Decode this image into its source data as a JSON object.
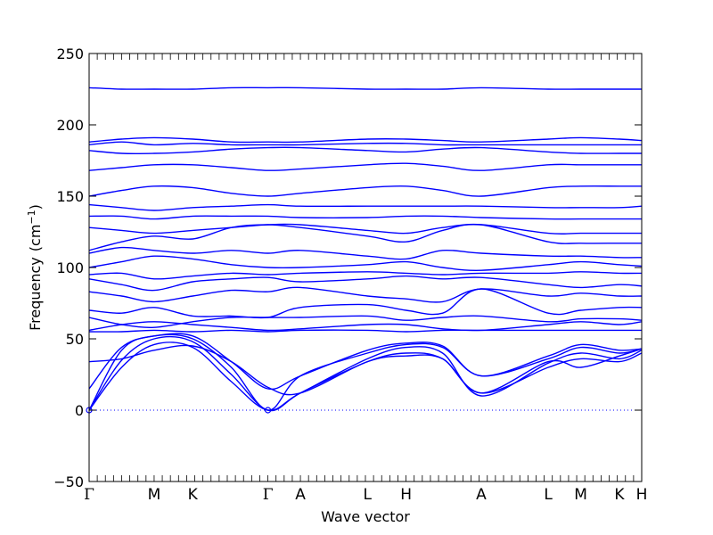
{
  "chart_data": {
    "type": "line",
    "title": "",
    "xlabel": "Wave vector",
    "ylabel_main": "Frequency",
    "ylabel_unit": "(cm",
    "ylabel_unit_sup": "−1",
    "ylabel_unit_close": ")",
    "ylim": [
      -50,
      250
    ],
    "yticks": [
      -50,
      0,
      50,
      100,
      150,
      200,
      250
    ],
    "grid": false,
    "legend": "none",
    "zero_line": true,
    "line_color": "#0000ff",
    "x_path_range": [
      0,
      13.6
    ],
    "kpoints": [
      {
        "label": "Γ",
        "x": 0
      },
      {
        "label": "M",
        "x": 1.6
      },
      {
        "label": "K",
        "x": 2.55
      },
      {
        "label": "Γ",
        "x": 4.4
      },
      {
        "label": "A",
        "x": 5.2
      },
      {
        "label": "L",
        "x": 6.85
      },
      {
        "label": "H",
        "x": 7.8
      },
      {
        "label": "A",
        "x": 9.65
      },
      {
        "label": "L",
        "x": 11.3
      },
      {
        "label": "M",
        "x": 12.1
      },
      {
        "label": "K",
        "x": 13.05
      },
      {
        "label": "H",
        "x": 13.6
      }
    ],
    "bands": [
      {
        "name": "",
        "values": [
          0,
          35,
          50,
          48,
          25,
          0,
          12,
          36,
          44,
          40,
          10,
          33,
          40,
          36,
          42
        ]
      },
      {
        "name": "",
        "values": [
          0,
          30,
          46,
          44,
          20,
          0,
          12,
          34,
          40,
          36,
          12,
          30,
          36,
          34,
          40
        ]
      },
      {
        "name": "",
        "values": [
          0,
          42,
          52,
          50,
          30,
          0,
          24,
          40,
          46,
          44,
          24,
          36,
          44,
          40,
          43
        ]
      },
      {
        "name": "",
        "values": [
          15,
          44,
          52,
          52,
          34,
          15,
          24,
          42,
          47,
          45,
          24,
          38,
          46,
          42,
          43
        ]
      },
      {
        "name": "",
        "values": [
          34,
          36,
          42,
          45,
          34,
          16,
          12,
          34,
          38,
          36,
          12,
          34,
          30,
          38,
          43
        ]
      },
      {
        "name": "",
        "values": [
          55,
          55,
          56,
          55,
          56,
          55,
          56,
          56,
          55,
          56,
          56,
          56,
          56,
          56,
          56
        ]
      },
      {
        "name": "",
        "values": [
          56,
          60,
          62,
          60,
          58,
          56,
          57,
          60,
          60,
          57,
          56,
          60,
          62,
          60,
          62
        ]
      },
      {
        "name": "",
        "values": [
          65,
          60,
          58,
          62,
          65,
          65,
          65,
          66,
          63,
          65,
          66,
          62,
          64,
          64,
          63
        ]
      },
      {
        "name": "",
        "values": [
          70,
          68,
          72,
          66,
          66,
          65,
          72,
          74,
          70,
          68,
          85,
          68,
          70,
          72,
          72
        ]
      },
      {
        "name": "",
        "values": [
          83,
          80,
          76,
          80,
          84,
          83,
          86,
          80,
          78,
          76,
          85,
          80,
          82,
          80,
          80
        ]
      },
      {
        "name": "",
        "values": [
          92,
          88,
          84,
          90,
          92,
          93,
          90,
          92,
          94,
          92,
          93,
          88,
          86,
          88,
          87
        ]
      },
      {
        "name": "",
        "values": [
          95,
          96,
          92,
          94,
          96,
          95,
          96,
          97,
          96,
          95,
          96,
          96,
          97,
          96,
          96
        ]
      },
      {
        "name": "",
        "values": [
          100,
          104,
          108,
          106,
          102,
          100,
          100,
          102,
          104,
          100,
          98,
          102,
          104,
          102,
          101
        ]
      },
      {
        "name": "",
        "values": [
          110,
          114,
          112,
          110,
          112,
          110,
          112,
          108,
          106,
          112,
          110,
          108,
          108,
          107,
          107
        ]
      },
      {
        "name": "",
        "values": [
          112,
          118,
          122,
          120,
          128,
          130,
          128,
          122,
          118,
          126,
          130,
          118,
          117,
          117,
          117
        ]
      },
      {
        "name": "",
        "values": [
          128,
          126,
          124,
          126,
          128,
          130,
          130,
          126,
          124,
          128,
          130,
          124,
          124,
          124,
          124
        ]
      },
      {
        "name": "",
        "values": [
          136,
          136,
          134,
          136,
          136,
          136,
          135,
          135,
          136,
          136,
          135,
          134,
          134,
          134,
          134
        ]
      },
      {
        "name": "",
        "values": [
          144,
          142,
          140,
          142,
          143,
          144,
          143,
          143,
          143,
          143,
          143,
          142,
          142,
          142,
          143
        ]
      },
      {
        "name": "",
        "values": [
          150,
          154,
          157,
          156,
          152,
          150,
          152,
          156,
          157,
          154,
          150,
          156,
          157,
          157,
          157
        ]
      },
      {
        "name": "",
        "values": [
          168,
          170,
          172,
          172,
          170,
          168,
          169,
          172,
          173,
          171,
          168,
          172,
          172,
          172,
          172
        ]
      },
      {
        "name": "",
        "values": [
          182,
          180,
          180,
          181,
          183,
          184,
          184,
          182,
          181,
          183,
          184,
          181,
          180,
          180,
          180
        ]
      },
      {
        "name": "",
        "values": [
          186,
          188,
          186,
          187,
          186,
          186,
          186,
          187,
          187,
          186,
          186,
          186,
          186,
          186,
          186
        ]
      },
      {
        "name": "",
        "values": [
          188,
          190,
          191,
          190,
          188,
          188,
          188,
          190,
          190,
          189,
          188,
          190,
          191,
          190,
          189
        ]
      },
      {
        "name": "",
        "values": [
          226,
          225,
          225,
          225,
          226,
          226,
          226,
          225,
          225,
          225,
          226,
          225,
          225,
          225,
          225
        ]
      }
    ],
    "band_x": [
      0,
      0.8,
      1.6,
      2.55,
      3.5,
      4.4,
      5.2,
      6.85,
      7.8,
      8.7,
      9.65,
      11.3,
      12.1,
      13.05,
      13.6
    ]
  }
}
